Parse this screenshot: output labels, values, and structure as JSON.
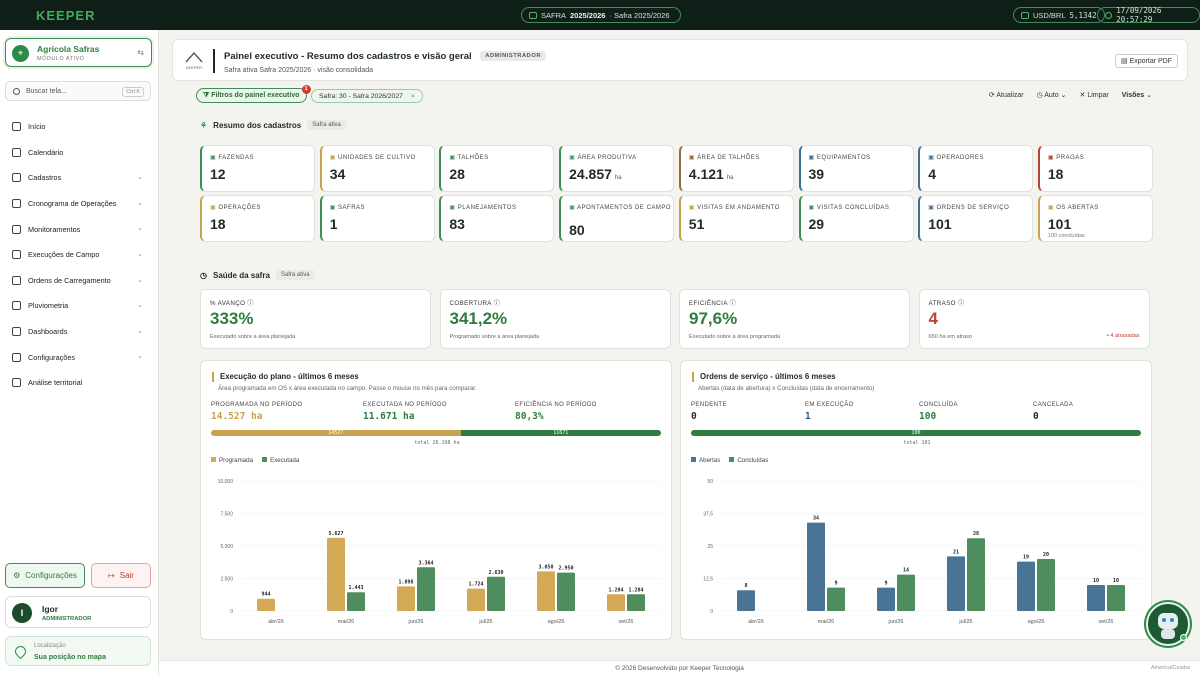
{
  "topbar": {
    "brand": "KEEPER",
    "safra_label": "SAFRA",
    "safra_value": "2025/2026",
    "safra_detail": "· Safra 2025/2026",
    "fx_label": "USD/BRL",
    "fx_value": "5,1342",
    "datetime": "17/09/2026 20:57:29"
  },
  "sidebar": {
    "farm_name": "Agrícola Safras",
    "farm_status": "MÓDULO ATIVO",
    "search_placeholder": "Buscar tela...",
    "search_shortcut": "Ctrl K",
    "items": [
      {
        "label": "Início",
        "chevron": false
      },
      {
        "label": "Calendário",
        "chevron": false
      },
      {
        "label": "Cadastros",
        "chevron": true
      },
      {
        "label": "Cronograma de Operações",
        "chevron": true
      },
      {
        "label": "Monitoramentos",
        "chevron": true
      },
      {
        "label": "Execuções de Campo",
        "chevron": true
      },
      {
        "label": "Ordens de Carregamento",
        "chevron": true
      },
      {
        "label": "Pluviometria",
        "chevron": true
      },
      {
        "label": "Dashboards",
        "chevron": true
      },
      {
        "label": "Configurações",
        "chevron": true
      },
      {
        "label": "Análise territorial",
        "chevron": false
      }
    ],
    "settings_button": "Configurações",
    "logout_button": "Sair",
    "user_initial": "I",
    "user_name": "Igor",
    "user_role": "ADMINISTRADOR",
    "location_label": "Localização",
    "location_action": "Sua posição no mapa"
  },
  "header": {
    "logo_text": "KEEPER",
    "title": "Painel executivo - Resumo dos cadastros e visão geral",
    "role_badge": "ADMINISTRADOR",
    "subtitle": "Safra ativa Safra 2025/2026 · visão consolidada",
    "export_button": "Exportar PDF"
  },
  "filters": {
    "toggle_label": "Filtros do painel executivo",
    "count": "1",
    "chip_label": "Safra: 30 - Safra 2026/2027",
    "chip_close": "×",
    "refresh": "Atualizar",
    "auto": "Auto",
    "clear": "Limpar",
    "views": "Visões"
  },
  "resumo": {
    "title": "Resumo dos cadastros",
    "tag": "Safra ativa",
    "cards": [
      {
        "label": "FAZENDAS",
        "value": "12",
        "unit": "",
        "foot": "",
        "color": "#3d8f55"
      },
      {
        "label": "UNIDADES DE CULTIVO",
        "value": "34",
        "unit": "",
        "foot": "",
        "color": "#c9a24d"
      },
      {
        "label": "TALHÕES",
        "value": "28",
        "unit": "",
        "foot": "",
        "color": "#3d8f55"
      },
      {
        "label": "ÁREA PRODUTIVA",
        "value": "24.857",
        "unit": "ha",
        "foot": "",
        "color": "#3d8f55"
      },
      {
        "label": "ÁREA DE TALHÕES",
        "value": "4.121",
        "unit": "ha",
        "foot": "",
        "color": "#9a6a3a"
      },
      {
        "label": "EQUIPAMENTOS",
        "value": "39",
        "unit": "",
        "foot": "",
        "color": "#3d6f8f"
      },
      {
        "label": "OPERADORES",
        "value": "4",
        "unit": "",
        "foot": "",
        "color": "#3d6f8f"
      },
      {
        "label": "PRAGAS",
        "value": "18",
        "unit": "",
        "foot": "",
        "color": "#b5452f"
      },
      {
        "label": "OPERAÇÕES",
        "value": "18",
        "unit": "",
        "foot": "",
        "color": "#c9a24d"
      },
      {
        "label": "SAFRAS",
        "value": "1",
        "unit": "",
        "foot": "",
        "color": "#3d8f55"
      },
      {
        "label": "PLANEJAMENTOS",
        "value": "83",
        "unit": "",
        "foot": "",
        "color": "#3d8f55"
      },
      {
        "label": "APONTAMENTOS DE CAMPO",
        "value": "80",
        "unit": "",
        "foot": "",
        "color": "#3d8f55"
      },
      {
        "label": "VISITAS EM ANDAMENTO",
        "value": "51",
        "unit": "",
        "foot": "",
        "color": "#c9a24d"
      },
      {
        "label": "VISITAS CONCLUÍDAS",
        "value": "29",
        "unit": "",
        "foot": "",
        "color": "#3d8f55"
      },
      {
        "label": "ORDENS DE SERVIÇO",
        "value": "101",
        "unit": "",
        "foot": "",
        "color": "#3d6f8f"
      },
      {
        "label": "OS ABERTAS",
        "value": "101",
        "unit": "",
        "foot": "100 concluídas",
        "color": "#c9a24d"
      }
    ]
  },
  "saude": {
    "title": "Saúde da safra",
    "tag": "Safra ativa",
    "cards": [
      {
        "label": "% AVANÇO",
        "value": "333%",
        "desc": "Executado sobre a área planejada",
        "late": ""
      },
      {
        "label": "COBERTURA",
        "value": "341,2%",
        "desc": "Programado sobre a área planejada",
        "late": ""
      },
      {
        "label": "EFICIÊNCIA",
        "value": "97,6%",
        "desc": "Executado sobre a área programada",
        "late": ""
      },
      {
        "label": "ATRASO",
        "value": "4",
        "desc": "650 ha em atraso",
        "late": "• 4 atrasadas"
      }
    ]
  },
  "plano": {
    "title": "Execução do plano - últimos 6 meses",
    "subtitle": "Área programada em OS x área executada no campo. Passe o mouse no mês para comparar.",
    "stats": [
      {
        "label": "PROGRAMADA NO PERÍODO",
        "value": "14.527 ha",
        "color": "#c9a24d"
      },
      {
        "label": "EXECUTADA NO PERÍODO",
        "value": "11.671 ha",
        "color": "#2e7d3e"
      },
      {
        "label": "EFICIÊNCIA NO PERÍODO",
        "value": "80,3%",
        "color": "#2e7d3e"
      }
    ],
    "bar_a": "14527",
    "bar_b": "11671",
    "bar_a_frac": 0.5545,
    "total": "total 26.198 ha",
    "legend_a": "Programada",
    "legend_b": "Executada"
  },
  "ordens": {
    "title": "Ordens de serviço - últimos 6 meses",
    "subtitle": "Abertas (data de abertura) x Concluídas (data de encerramento)",
    "stats": [
      {
        "label": "PENDENTE",
        "value": "0",
        "color": "#1f2a24"
      },
      {
        "label": "EM EXECUÇÃO",
        "value": "1",
        "color": "#2e5f8a"
      },
      {
        "label": "CONCLUÍDA",
        "value": "100",
        "color": "#2e7d3e"
      },
      {
        "label": "CANCELADA",
        "value": "0",
        "color": "#1f2a24"
      }
    ],
    "bar_label": "100",
    "bar_frac": 1,
    "total": "total 101",
    "legend_a": "Abertas",
    "legend_b": "Concluídas"
  },
  "chart_data": [
    {
      "type": "bar",
      "categories": [
        "abr/26",
        "mai/26",
        "jun/26",
        "jul/26",
        "ago/26",
        "set/26"
      ],
      "series": [
        {
          "name": "Programada",
          "values": [
            944,
            5627,
            1898,
            1724,
            3050,
            1284
          ],
          "labels": [
            "944",
            "5.627",
            "1.898",
            "1.724",
            "3.050",
            "1.284"
          ],
          "color": "#d4a955"
        },
        {
          "name": "Executada",
          "values": [
            0,
            1443,
            3364,
            2630,
            2950,
            1284
          ],
          "labels": [
            "",
            "1.443",
            "3.364",
            "2.630",
            "2.950",
            "1.284"
          ],
          "color": "#4f8c5e"
        }
      ],
      "yticks": [
        "10.000",
        "7.500",
        "5.000",
        "2.500",
        "0"
      ],
      "ylim": [
        0,
        10000
      ]
    },
    {
      "type": "bar",
      "categories": [
        "abr/26",
        "mai/26",
        "jun/26",
        "jul/26",
        "ago/26",
        "set/26"
      ],
      "series": [
        {
          "name": "Abertas",
          "values": [
            8,
            34,
            9,
            21,
            19,
            10
          ],
          "labels": [
            "8",
            "34",
            "9",
            "21",
            "19",
            "10"
          ],
          "color": "#4a7496"
        },
        {
          "name": "Concluídas",
          "values": [
            0,
            9,
            14,
            28,
            20,
            10
          ],
          "labels": [
            "",
            "9",
            "14",
            "28",
            "20",
            "10"
          ],
          "color": "#4f8c5e"
        }
      ],
      "yticks": [
        "50",
        "37,5",
        "25",
        "12,5",
        "0"
      ],
      "ylim": [
        0,
        50
      ]
    }
  ],
  "footer": {
    "credit": "© 2026 Desenvolvido por Keeper Tecnologia",
    "timezone": "America/Cuiaba"
  }
}
